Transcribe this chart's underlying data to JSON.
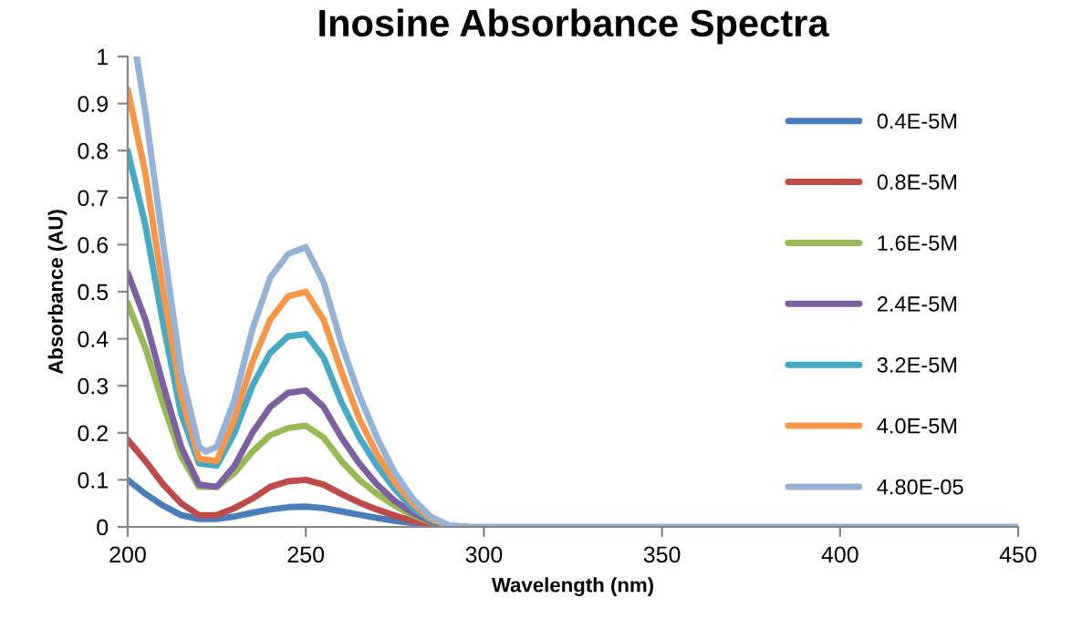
{
  "chart_data": {
    "type": "line",
    "title": "Inosine Absorbance Spectra",
    "xlabel": "Wavelength (nm)",
    "ylabel": "Absorbance (AU)",
    "x": [
      200,
      205,
      210,
      215,
      220,
      225,
      230,
      235,
      240,
      245,
      250,
      255,
      260,
      265,
      270,
      275,
      280,
      285,
      290,
      295
    ],
    "series": [
      {
        "name": "0.4E-5M",
        "color": "#4a7ebb",
        "values": [
          0.1,
          0.07,
          0.045,
          0.025,
          0.017,
          0.017,
          0.022,
          0.03,
          0.037,
          0.042,
          0.043,
          0.04,
          0.033,
          0.026,
          0.019,
          0.013,
          0.008,
          0.004,
          0.001,
          0
        ]
      },
      {
        "name": "0.8E-5M",
        "color": "#be4b48",
        "values": [
          0.185,
          0.14,
          0.09,
          0.05,
          0.025,
          0.025,
          0.04,
          0.06,
          0.085,
          0.097,
          0.1,
          0.09,
          0.07,
          0.052,
          0.037,
          0.024,
          0.013,
          0.006,
          0.001,
          0
        ]
      },
      {
        "name": "1.6E-5M",
        "color": "#98b954",
        "values": [
          0.475,
          0.38,
          0.26,
          0.15,
          0.085,
          0.085,
          0.115,
          0.16,
          0.195,
          0.21,
          0.215,
          0.19,
          0.14,
          0.1,
          0.07,
          0.045,
          0.025,
          0.01,
          0.002,
          0
        ]
      },
      {
        "name": "2.4E-5M",
        "color": "#7d60a0",
        "values": [
          0.54,
          0.44,
          0.3,
          0.17,
          0.09,
          0.085,
          0.13,
          0.2,
          0.255,
          0.285,
          0.29,
          0.255,
          0.19,
          0.135,
          0.09,
          0.055,
          0.03,
          0.012,
          0.002,
          0
        ]
      },
      {
        "name": "3.2E-5M",
        "color": "#46aac5",
        "values": [
          0.8,
          0.64,
          0.43,
          0.24,
          0.135,
          0.13,
          0.2,
          0.3,
          0.37,
          0.405,
          0.41,
          0.36,
          0.265,
          0.19,
          0.13,
          0.08,
          0.04,
          0.015,
          0.002,
          0
        ]
      },
      {
        "name": "4.0E-5M",
        "color": "#f79646",
        "values": [
          0.93,
          0.75,
          0.5,
          0.28,
          0.145,
          0.14,
          0.23,
          0.35,
          0.44,
          0.49,
          0.5,
          0.44,
          0.33,
          0.23,
          0.155,
          0.095,
          0.05,
          0.018,
          0.003,
          0
        ]
      },
      {
        "name": "4.80E-05",
        "color": "#95b3d7",
        "x": [
          202.5,
          205,
          210,
          215,
          220,
          222,
          225,
          230,
          235,
          240,
          245,
          250,
          255,
          260,
          265,
          270,
          275,
          280,
          285,
          290,
          295,
          300,
          350,
          400,
          450
        ],
        "values": [
          1.0,
          0.88,
          0.6,
          0.33,
          0.17,
          0.16,
          0.17,
          0.27,
          0.42,
          0.53,
          0.58,
          0.595,
          0.52,
          0.39,
          0.28,
          0.19,
          0.115,
          0.06,
          0.022,
          0.004,
          0,
          0,
          0,
          0,
          0
        ]
      }
    ],
    "xlim": [
      200,
      450
    ],
    "xticks": [
      200,
      250,
      300,
      350,
      400,
      450
    ],
    "ylim": [
      0,
      1
    ],
    "yticks": [
      0,
      0.1,
      0.2,
      0.3,
      0.4,
      0.5,
      0.6,
      0.7,
      0.8,
      0.9,
      1
    ],
    "grid": false,
    "legend": "right",
    "marker": "none",
    "line_style": "solid"
  }
}
